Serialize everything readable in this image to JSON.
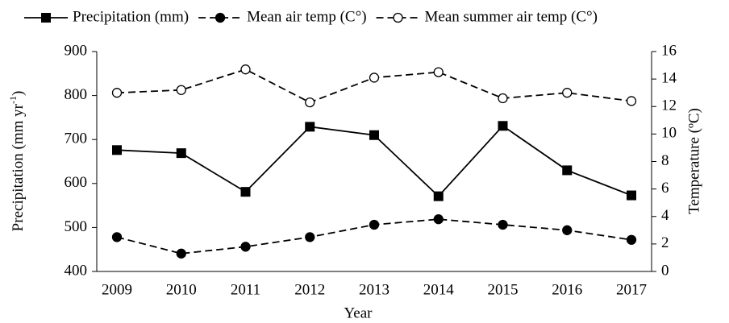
{
  "chart_data": {
    "type": "line",
    "x_label": "Year",
    "y_label": {
      "main": "Precipitation (mm yr",
      "sup": "-1",
      "end": ")"
    },
    "y2_label": "Temperature (ºC)",
    "categories": [
      "2009",
      "2010",
      "2011",
      "2012",
      "2013",
      "2014",
      "2015",
      "2016",
      "2017"
    ],
    "series": [
      {
        "name": "Precipitation (mm)",
        "color": "#000000",
        "line_style": "solid",
        "marker": "square-filled",
        "values": [
          676,
          669,
          581,
          729,
          710,
          571,
          731,
          630,
          573
        ]
      },
      {
        "name": "Mean air temp (C°)",
        "color": "#000000",
        "line_style": "dashed",
        "marker": "circle-filled",
        "axis": "y2",
        "values": [
          2.5,
          1.3,
          1.8,
          2.5,
          3.4,
          3.8,
          3.4,
          3.0,
          2.3
        ]
      },
      {
        "name": "Mean summer air temp (C°)",
        "color": "#000000",
        "line_style": "dashed",
        "marker": "circle-open",
        "axis": "y2",
        "values": [
          13.0,
          13.2,
          14.7,
          12.3,
          14.1,
          14.5,
          12.6,
          13.0,
          12.4
        ]
      }
    ],
    "ylim": [
      400,
      900
    ],
    "yticks": [
      400,
      500,
      600,
      700,
      800,
      900
    ],
    "y2lim": [
      0,
      16
    ],
    "y2ticks": [
      0,
      2,
      4,
      6,
      8,
      10,
      12,
      14,
      16
    ],
    "grid": false,
    "legend": "top"
  }
}
